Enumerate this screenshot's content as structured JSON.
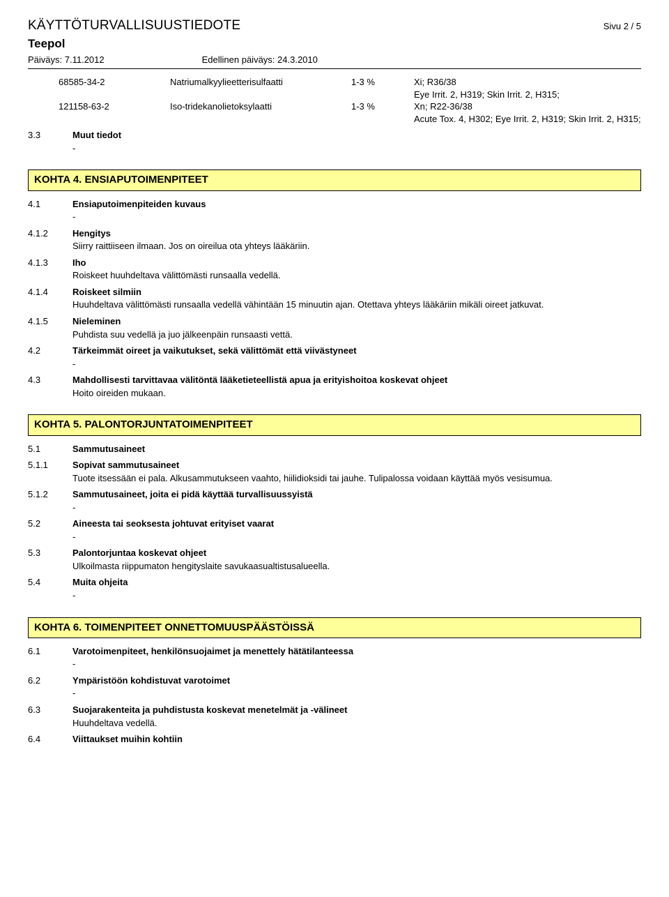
{
  "header": {
    "doc_title": "KÄYTTÖTURVALLISUUSTIEDOTE",
    "page_label": "Sivu 2 / 5",
    "product_name": "Teepol",
    "date_label": "Päiväys: 7.11.2012",
    "prev_date_label": "Edellinen päiväys: 24.3.2010"
  },
  "ingredients": [
    {
      "cas": "68585-34-2",
      "name": "Natriumalkyylieetterisulfaatti",
      "pct": "1-3 %",
      "cls1": "Xi; R36/38",
      "cls2": "Eye Irrit. 2, H319; Skin Irrit. 2, H315;"
    },
    {
      "cas": "121158-63-2",
      "name": "Iso-tridekanolietoksylaatti",
      "pct": "1-3 %",
      "cls1": "Xn; R22-36/38",
      "cls2": "Acute Tox. 4, H302; Eye Irrit. 2, H319; Skin Irrit. 2, H315;"
    }
  ],
  "s3_3": {
    "num": "3.3",
    "label": "Muut tiedot",
    "text": "-"
  },
  "kohta4": {
    "title": "KOHTA 4. ENSIAPUTOIMENPITEET",
    "r4_1": {
      "num": "4.1",
      "label": "Ensiaputoimenpiteiden kuvaus",
      "text": "-"
    },
    "r4_1_2": {
      "num": "4.1.2",
      "label": "Hengitys",
      "text": "Siirry raittiiseen ilmaan. Jos on oireilua ota yhteys lääkäriin."
    },
    "r4_1_3": {
      "num": "4.1.3",
      "label": "Iho",
      "text": "Roiskeet huuhdeltava välittömästi runsaalla vedellä."
    },
    "r4_1_4": {
      "num": "4.1.4",
      "label": "Roiskeet silmiin",
      "text": "Huuhdeltava välittömästi runsaalla vedellä vähintään 15 minuutin ajan. Otettava yhteys lääkäriin mikäli oireet jatkuvat."
    },
    "r4_1_5": {
      "num": "4.1.5",
      "label": "Nieleminen",
      "text": "Puhdista suu vedellä ja juo jälkeenpäin runsaasti vettä."
    },
    "r4_2": {
      "num": "4.2",
      "label": "Tärkeimmät oireet ja vaikutukset, sekä välittömät että viivästyneet",
      "text": "-"
    },
    "r4_3": {
      "num": "4.3",
      "label": "Mahdollisesti tarvittavaa välitöntä lääketieteellistä apua ja erityishoitoa koskevat ohjeet",
      "text": "Hoito oireiden mukaan."
    }
  },
  "kohta5": {
    "title": "KOHTA 5. PALONTORJUNTATOIMENPITEET",
    "r5_1": {
      "num": "5.1",
      "label": "Sammutusaineet"
    },
    "r5_1_1": {
      "num": "5.1.1",
      "label": "Sopivat sammutusaineet",
      "text": "Tuote itsessään ei pala. Alkusammutukseen vaahto, hiilidioksidi tai jauhe. Tulipalossa voidaan käyttää myös vesisumua."
    },
    "r5_1_2": {
      "num": "5.1.2",
      "label": "Sammutusaineet, joita ei pidä käyttää turvallisuussyistä",
      "text": "-"
    },
    "r5_2": {
      "num": "5.2",
      "label": "Aineesta tai seoksesta johtuvat erityiset vaarat",
      "text": "-"
    },
    "r5_3": {
      "num": "5.3",
      "label": "Palontorjuntaa koskevat ohjeet",
      "text": "Ulkoilmasta riippumaton hengityslaite savukaasualtistusalueella."
    },
    "r5_4": {
      "num": "5.4",
      "label": "Muita ohjeita",
      "text": "-"
    }
  },
  "kohta6": {
    "title": "KOHTA 6. TOIMENPITEET ONNETTOMUUSPÄÄSTÖISSÄ",
    "r6_1": {
      "num": "6.1",
      "label": "Varotoimenpiteet, henkilönsuojaimet ja menettely hätätilanteessa",
      "text": "-"
    },
    "r6_2": {
      "num": "6.2",
      "label": "Ympäristöön kohdistuvat varotoimet",
      "text": "-"
    },
    "r6_3": {
      "num": "6.3",
      "label": "Suojarakenteita ja puhdistusta koskevat menetelmät ja -välineet",
      "text": "Huuhdeltava vedellä."
    },
    "r6_4": {
      "num": "6.4",
      "label": "Viittaukset muihin kohtiin"
    }
  }
}
